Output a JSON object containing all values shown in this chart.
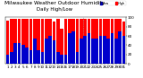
{
  "title": "Milwaukee Weather Outdoor Humidity",
  "subtitle": "Daily High/Low",
  "legend_labels": [
    "High",
    "Low"
  ],
  "ylim": [
    0,
    100
  ],
  "background_color": "#ffffff",
  "plot_bg": "#ffffff",
  "days": [
    1,
    2,
    3,
    4,
    5,
    6,
    7,
    8,
    9,
    10,
    11,
    12,
    13,
    14,
    15,
    16,
    17,
    18,
    19,
    20,
    21,
    22,
    23,
    24,
    25,
    26,
    27,
    28,
    29,
    30,
    31
  ],
  "highs": [
    93,
    97,
    97,
    97,
    97,
    97,
    97,
    97,
    97,
    97,
    97,
    97,
    90,
    97,
    75,
    97,
    97,
    97,
    97,
    97,
    97,
    97,
    97,
    97,
    97,
    97,
    97,
    97,
    97,
    97,
    90
  ],
  "lows": [
    20,
    25,
    45,
    45,
    40,
    35,
    30,
    55,
    30,
    25,
    55,
    60,
    50,
    25,
    20,
    20,
    65,
    70,
    25,
    55,
    60,
    65,
    55,
    55,
    60,
    60,
    55,
    65,
    55,
    70,
    60
  ],
  "dashed_vline_x": 20.5,
  "color_high": "#ff0000",
  "color_low": "#0000cc",
  "tick_fontsize": 3.0,
  "title_fontsize": 4.2,
  "yticks": [
    0,
    20,
    40,
    60,
    80,
    100
  ],
  "ytick_labels": [
    "0",
    "20",
    "40",
    "60",
    "80",
    "100"
  ]
}
